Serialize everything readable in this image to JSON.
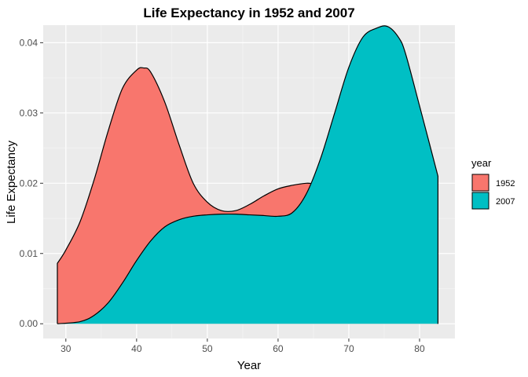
{
  "chart_data": {
    "type": "area",
    "title": "Life Expectancy in 1952 and 2007",
    "xlabel": "Year",
    "ylabel": "Life Expectancy",
    "xlim": [
      26.8,
      85.0
    ],
    "ylim": [
      -0.0021,
      0.0425
    ],
    "x_ticks": [
      30,
      40,
      50,
      60,
      70,
      80
    ],
    "x_tick_labels": [
      "30",
      "40",
      "50",
      "60",
      "70",
      "80"
    ],
    "y_ticks": [
      0.0,
      0.01,
      0.02,
      0.03,
      0.04
    ],
    "y_tick_labels": [
      "0.00",
      "0.01",
      "0.02",
      "0.03",
      "0.04"
    ],
    "grid": true,
    "legend": {
      "title": "year",
      "position": "right"
    },
    "series": [
      {
        "name": "1952",
        "color": "#F8766D",
        "x": [
          28.8,
          30,
          32,
          34,
          36,
          38,
          40,
          41,
          42,
          44,
          46,
          48,
          50,
          52,
          54,
          56,
          58,
          60,
          62,
          64,
          65,
          66,
          68,
          70,
          72,
          74,
          76,
          78,
          80,
          82.6
        ],
        "values": [
          0.0086,
          0.0105,
          0.0145,
          0.0205,
          0.0275,
          0.0335,
          0.0361,
          0.0364,
          0.0358,
          0.0315,
          0.0255,
          0.02,
          0.0173,
          0.0161,
          0.0161,
          0.017,
          0.0182,
          0.0192,
          0.0197,
          0.02,
          0.0199,
          0.0197,
          0.0184,
          0.0165,
          0.0147,
          0.0134,
          0.0125,
          0.0125,
          0.016,
          0.021
        ]
      },
      {
        "name": "2007",
        "color": "#00BFC4",
        "x": [
          28.8,
          32,
          34,
          36,
          38,
          40,
          42,
          44,
          46,
          48,
          50,
          52,
          54,
          56,
          58,
          60,
          62,
          64,
          66,
          68,
          70,
          72,
          74,
          75.5,
          77,
          78,
          80,
          82.6
        ],
        "values": [
          0.0,
          0.0003,
          0.0012,
          0.003,
          0.0058,
          0.009,
          0.0118,
          0.0138,
          0.0148,
          0.0153,
          0.0155,
          0.0156,
          0.0156,
          0.0155,
          0.0154,
          0.0153,
          0.0158,
          0.0185,
          0.0235,
          0.03,
          0.0365,
          0.0408,
          0.0421,
          0.0423,
          0.0408,
          0.0385,
          0.031,
          0.021
        ]
      }
    ]
  }
}
